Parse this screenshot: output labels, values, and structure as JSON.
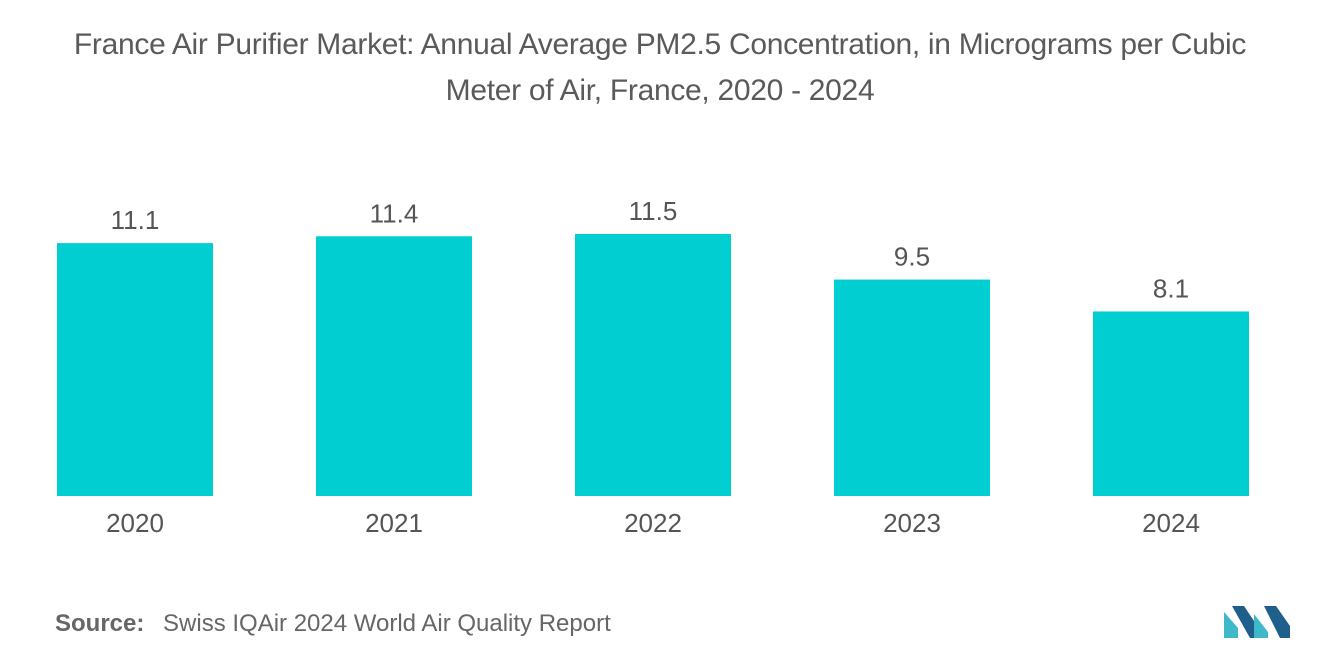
{
  "title": {
    "line1": "France Air Purifier Market: Annual Average PM2.5 Concentration, in Micrograms per Cubic",
    "line2": "Meter of Air, France, 2020 - 2024"
  },
  "source": {
    "label": "Source:",
    "text": "Swiss IQAir 2024 World Air Quality Report"
  },
  "colors": {
    "bar": "#00CED1",
    "text": "#555555",
    "logo_dark": "#1f5f8b",
    "logo_light": "#3fb8c9"
  },
  "logo": {
    "icon": "mordor-logo-icon"
  },
  "chart_data": {
    "type": "bar",
    "title": "France Air Purifier Market: Annual Average PM2.5 Concentration, in Micrograms per Cubic Meter of Air, France, 2020 - 2024",
    "categories": [
      "2020",
      "2021",
      "2022",
      "2023",
      "2024"
    ],
    "values": [
      11.1,
      11.4,
      11.5,
      9.5,
      8.1
    ],
    "value_labels": [
      "11.1",
      "11.4",
      "11.5",
      "9.5",
      "8.1"
    ],
    "xlabel": "",
    "ylabel": "",
    "ylim": [
      0,
      11.5
    ],
    "grid": false,
    "legend": "none"
  }
}
